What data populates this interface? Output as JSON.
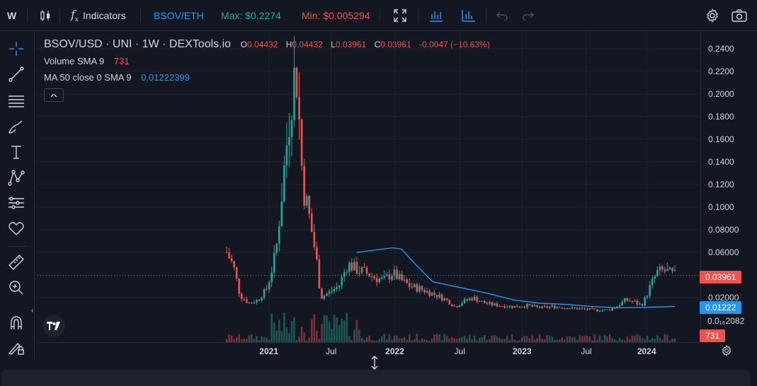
{
  "toolbar": {
    "interval": "W",
    "indicators_label": "Indicators",
    "pair": "BSOV/ETH",
    "max_label": "Max: $0.2274",
    "min_label": "Min: $0.005294"
  },
  "legend": {
    "title": "BSOV/USD · UNI · 1W · DEXTools.io",
    "o_label": "O",
    "o_value": "0.04432",
    "h_label": "H",
    "h_value": "0.04432",
    "l_label": "L",
    "l_value": "0.03961",
    "c_label": "C",
    "c_value": "0.03961",
    "change": "-0.0047 (−10.63%)",
    "volume_label": "Volume SMA 9",
    "volume_value": "731",
    "ma_label": "MA 50 close 0 SMA 9",
    "ma_value": "0.01222399"
  },
  "axis": {
    "y_ticks": [
      "0.2400",
      "0.2200",
      "0.2000",
      "0.1800",
      "0.1600",
      "0.1400",
      "0.1200",
      "0.1000",
      "0.08000",
      "0.06000",
      "0.02000"
    ],
    "y_tick_values": [
      0.24,
      0.22,
      0.2,
      0.18,
      0.16,
      0.14,
      0.12,
      0.1,
      0.08,
      0.06,
      0.02
    ],
    "x_ticks": [
      {
        "label": "2021",
        "bold": true,
        "x": 0.175
      },
      {
        "label": "Jul",
        "bold": false,
        "x": 0.33
      },
      {
        "label": "2022",
        "bold": true,
        "x": 0.5
      },
      {
        "label": "Jul",
        "bold": false,
        "x": 0.66
      },
      {
        "label": "2023",
        "bold": true,
        "x": 0.8
      },
      {
        "label": "Jul",
        "bold": false,
        "x": 0.86
      },
      {
        "label": "2024",
        "bold": true,
        "x": 0.98
      }
    ],
    "partial_label": "0.0₁₆2082",
    "last_price_tag": "0.03961",
    "ma_tag": "0.01222",
    "volume_tag": "731"
  },
  "colors": {
    "up": "#26a69a",
    "down": "#ef5350",
    "ma": "#2196f3",
    "background": "#131722",
    "pair": "#2196f3",
    "max": "#26a69a",
    "min": "#ef5350"
  },
  "chart_data": {
    "type": "candlestick",
    "title": "BSOV/USD · UNI · 1W · DEXTools.io",
    "ylim": [
      0,
      0.25
    ],
    "series": [
      {
        "name": "BSOV/USD",
        "x_range": [
          "2020-10",
          "2024-03"
        ],
        "close_points": [
          [
            0.0,
            0.06
          ],
          [
            0.015,
            0.048
          ],
          [
            0.03,
            0.022
          ],
          [
            0.05,
            0.015
          ],
          [
            0.07,
            0.018
          ],
          [
            0.09,
            0.028
          ],
          [
            0.11,
            0.06
          ],
          [
            0.13,
            0.14
          ],
          [
            0.145,
            0.2
          ],
          [
            0.155,
            0.225
          ],
          [
            0.17,
            0.12
          ],
          [
            0.185,
            0.09
          ],
          [
            0.2,
            0.055
          ],
          [
            0.21,
            0.02
          ],
          [
            0.23,
            0.025
          ],
          [
            0.25,
            0.03
          ],
          [
            0.27,
            0.05
          ],
          [
            0.29,
            0.045
          ],
          [
            0.31,
            0.042
          ],
          [
            0.33,
            0.038
          ],
          [
            0.35,
            0.035
          ],
          [
            0.37,
            0.042
          ],
          [
            0.39,
            0.035
          ],
          [
            0.41,
            0.03
          ],
          [
            0.43,
            0.028
          ],
          [
            0.45,
            0.025
          ],
          [
            0.47,
            0.022
          ],
          [
            0.49,
            0.018
          ],
          [
            0.51,
            0.012
          ],
          [
            0.53,
            0.017
          ],
          [
            0.55,
            0.02
          ],
          [
            0.57,
            0.016
          ],
          [
            0.59,
            0.014
          ],
          [
            0.61,
            0.013
          ],
          [
            0.64,
            0.012
          ],
          [
            0.67,
            0.013
          ],
          [
            0.7,
            0.011
          ],
          [
            0.73,
            0.012
          ],
          [
            0.76,
            0.011
          ],
          [
            0.79,
            0.01
          ],
          [
            0.82,
            0.009
          ],
          [
            0.85,
            0.009
          ],
          [
            0.87,
            0.012
          ],
          [
            0.89,
            0.018
          ],
          [
            0.91,
            0.016
          ],
          [
            0.925,
            0.013
          ],
          [
            0.935,
            0.02
          ],
          [
            0.945,
            0.03
          ],
          [
            0.96,
            0.042
          ],
          [
            0.975,
            0.044
          ],
          [
            1.0,
            0.0396
          ]
        ]
      },
      {
        "name": "MA 50 close 0 SMA 9",
        "points": [
          [
            0.29,
            0.06
          ],
          [
            0.33,
            0.062
          ],
          [
            0.37,
            0.064
          ],
          [
            0.39,
            0.063
          ],
          [
            0.42,
            0.05
          ],
          [
            0.46,
            0.034
          ],
          [
            0.52,
            0.029
          ],
          [
            0.58,
            0.024
          ],
          [
            0.64,
            0.018
          ],
          [
            0.7,
            0.015
          ],
          [
            0.76,
            0.014
          ],
          [
            0.82,
            0.012
          ],
          [
            0.88,
            0.011
          ],
          [
            0.94,
            0.0115
          ],
          [
            1.0,
            0.0122
          ]
        ]
      }
    ],
    "volume_value": 731
  }
}
